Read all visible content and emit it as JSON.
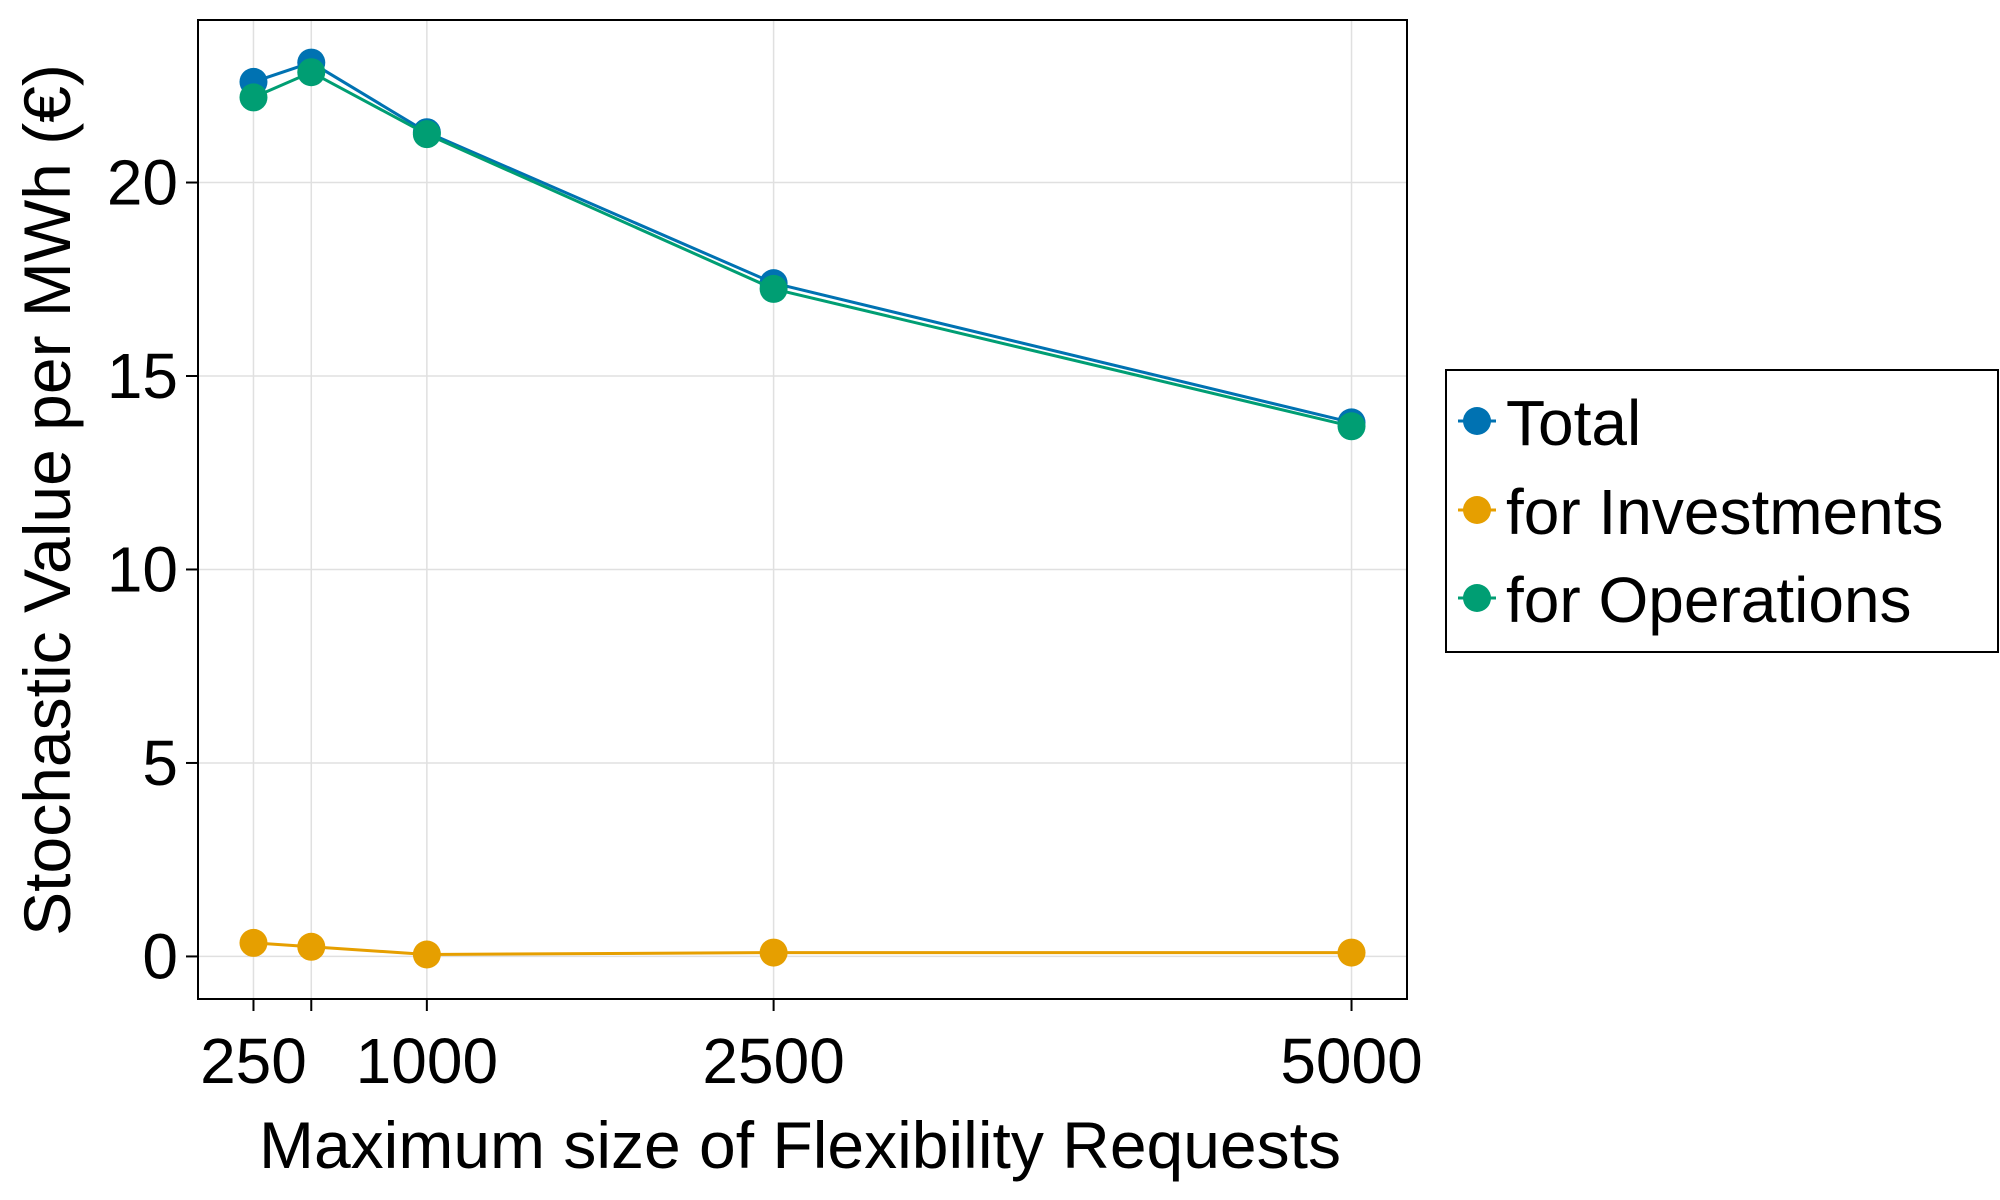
{
  "chart_data": {
    "type": "line",
    "title": "",
    "xlabel": "Maximum size of Flexibility Requests",
    "ylabel": "Stochastic Value per MWh (€)",
    "x": [
      250,
      500,
      1000,
      2500,
      5000
    ],
    "xticks": [
      250,
      1000,
      2500,
      5000
    ],
    "yticks": [
      0,
      5,
      10,
      15,
      20
    ],
    "xlim": [
      10,
      5240
    ],
    "ylim": [
      -1.1,
      24.2
    ],
    "grid": true,
    "legend_position": "right",
    "series": [
      {
        "name": "Total",
        "color": "#0072b2",
        "values": [
          22.6,
          23.1,
          21.3,
          17.4,
          13.8
        ]
      },
      {
        "name": "for Investments",
        "color": "#e69f00",
        "values": [
          0.35,
          0.25,
          0.05,
          0.1,
          0.1
        ]
      },
      {
        "name": "for Operations",
        "color": "#009e73",
        "values": [
          22.2,
          22.85,
          21.25,
          17.25,
          13.7
        ]
      }
    ]
  }
}
